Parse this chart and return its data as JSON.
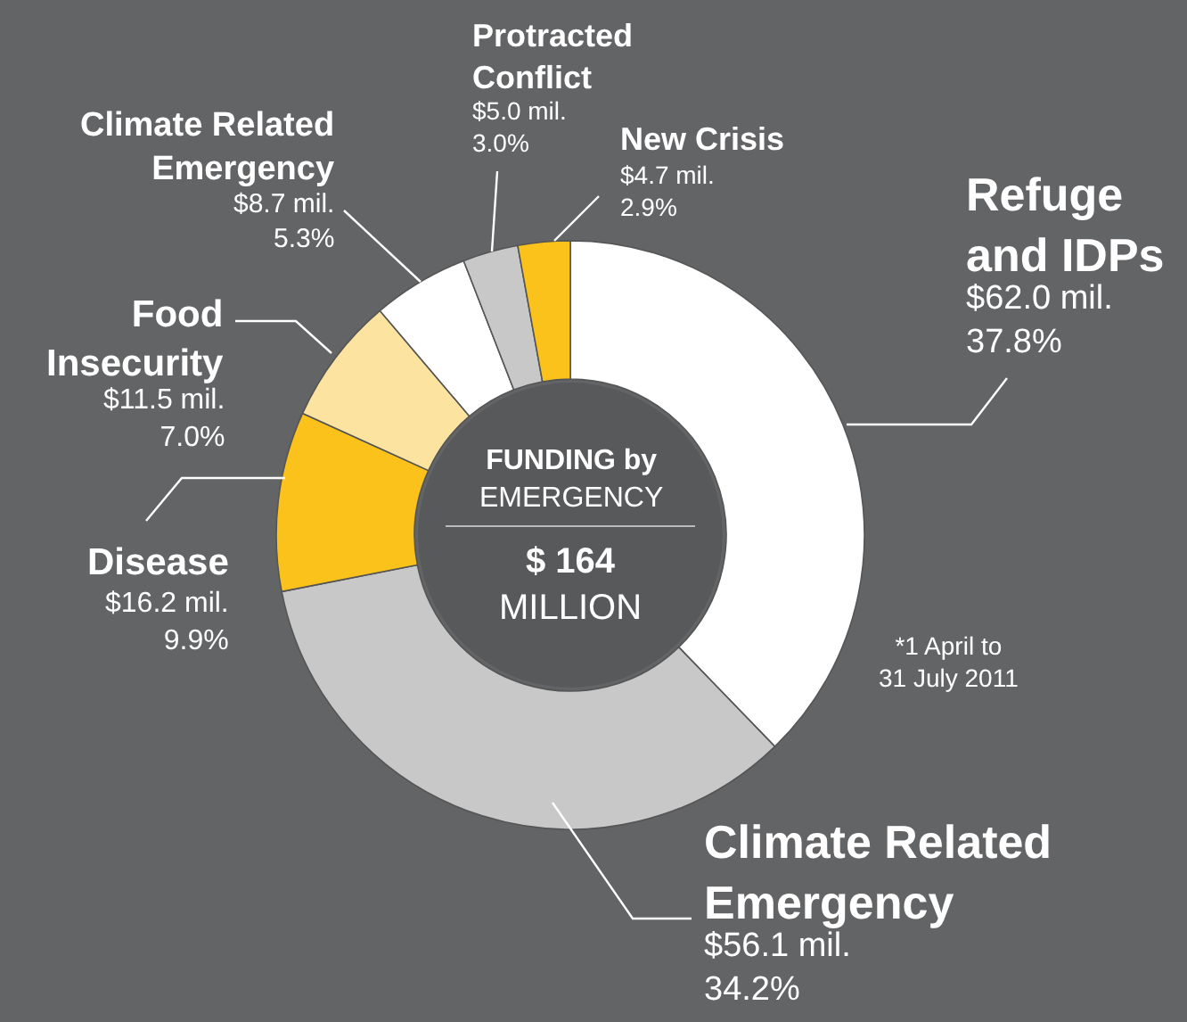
{
  "chart_data": {
    "type": "donut",
    "categories": [
      "Refuge\nand IDPs",
      "Climate Related\nEmergency",
      "Disease",
      "Food\nInsecurity",
      "Climate Related\nEmergency",
      "Protracted\nConflict",
      "New Crisis"
    ],
    "values": [
      62.0,
      56.1,
      16.2,
      11.5,
      8.7,
      5.0,
      4.7
    ],
    "value_labels": [
      "$62.0 mil.\n37.8%",
      "$56.1 mil.\n34.2%",
      "$16.2 mil.\n9.9%",
      "$11.5 mil.\n7.0%",
      "$8.7 mil.\n5.3%",
      "$5.0 mil.\n3.0%",
      "$4.7 mil.\n2.9%"
    ],
    "colors": [
      "#ffffff",
      "#c8c8c8",
      "#fbc21b",
      "#fde3a0",
      "#ffffff",
      "#c8c8c8",
      "#fbc21b"
    ],
    "annotations": [
      "FUNDING by\nEMERGENCY",
      "$ 164\nMILLION",
      "*1 April to\n31 July 2011"
    ],
    "legend": false
  }
}
